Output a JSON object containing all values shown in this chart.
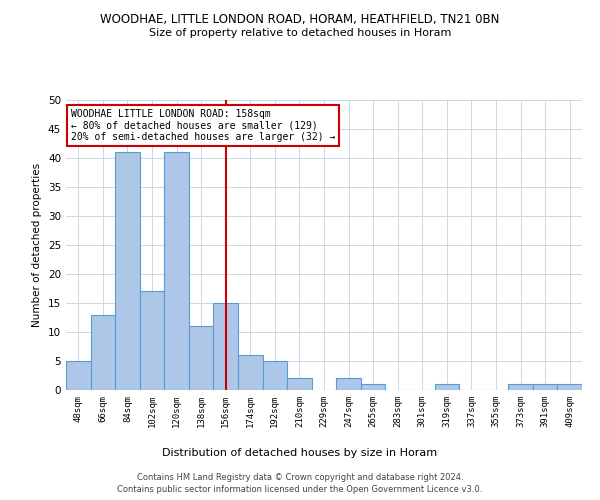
{
  "title1": "WOODHAE, LITTLE LONDON ROAD, HORAM, HEATHFIELD, TN21 0BN",
  "title2": "Size of property relative to detached houses in Horam",
  "xlabel": "Distribution of detached houses by size in Horam",
  "ylabel": "Number of detached properties",
  "categories": [
    "48sqm",
    "66sqm",
    "84sqm",
    "102sqm",
    "120sqm",
    "138sqm",
    "156sqm",
    "174sqm",
    "192sqm",
    "210sqm",
    "229sqm",
    "247sqm",
    "265sqm",
    "283sqm",
    "301sqm",
    "319sqm",
    "337sqm",
    "355sqm",
    "373sqm",
    "391sqm",
    "409sqm"
  ],
  "values": [
    5,
    13,
    41,
    17,
    41,
    11,
    15,
    6,
    5,
    2,
    0,
    2,
    1,
    0,
    0,
    1,
    0,
    0,
    1,
    1,
    1
  ],
  "bar_color": "#aec6e8",
  "bar_edge_color": "#5b9bd5",
  "ylim": [
    0,
    50
  ],
  "yticks": [
    0,
    5,
    10,
    15,
    20,
    25,
    30,
    35,
    40,
    45,
    50
  ],
  "annotation_title": "WOODHAE LITTLE LONDON ROAD: 158sqm",
  "annotation_line1": "← 80% of detached houses are smaller (129)",
  "annotation_line2": "20% of semi-detached houses are larger (32) →",
  "annotation_box_color": "#ffffff",
  "annotation_box_edge": "#cc0000",
  "footer1": "Contains HM Land Registry data © Crown copyright and database right 2024.",
  "footer2": "Contains public sector information licensed under the Open Government Licence v3.0.",
  "background_color": "#ffffff",
  "grid_color": "#c8d8e8",
  "vline_color": "#cc0000",
  "vline_x": 6.0
}
